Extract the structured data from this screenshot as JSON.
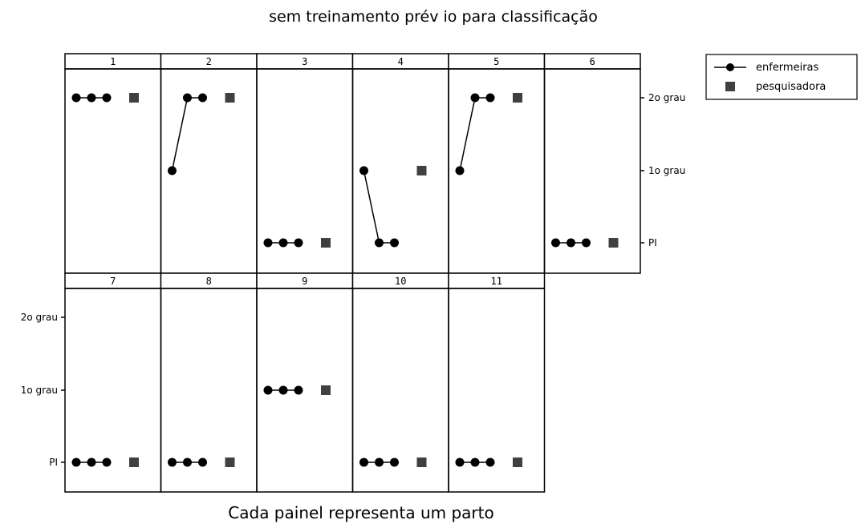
{
  "chart_data": {
    "type": "line",
    "title": "sem treinamento prév io para classificação",
    "xlabel": "Cada painel representa um parto",
    "ylabel": "",
    "y_categories": [
      "PI",
      "1o grau",
      "2o grau"
    ],
    "y_tick_labels": [
      "PI",
      "1o grau",
      "2o grau"
    ],
    "legend": {
      "placement": "top-right",
      "entries": [
        {
          "name": "enfermeiras",
          "marker": "circle",
          "line": true
        },
        {
          "name": "pesquisadora",
          "marker": "square",
          "line": false
        }
      ]
    },
    "colors": {
      "marks": "#000000",
      "square": "#404040",
      "border": "#000000"
    },
    "panels": [
      {
        "label": "1",
        "enfermeiras": [
          2,
          2,
          2
        ],
        "pesquisadora": 2
      },
      {
        "label": "2",
        "enfermeiras": [
          1,
          2,
          2
        ],
        "pesquisadora": 2
      },
      {
        "label": "3",
        "enfermeiras": [
          0,
          0,
          0
        ],
        "pesquisadora": 0
      },
      {
        "label": "4",
        "enfermeiras": [
          1,
          0,
          0
        ],
        "pesquisadora": 1
      },
      {
        "label": "5",
        "enfermeiras": [
          1,
          2,
          2
        ],
        "pesquisadora": 2
      },
      {
        "label": "6",
        "enfermeiras": [
          0,
          0,
          0
        ],
        "pesquisadora": 0
      },
      {
        "label": "7",
        "enfermeiras": [
          0,
          0,
          0
        ],
        "pesquisadora": 0
      },
      {
        "label": "8",
        "enfermeiras": [
          0,
          0,
          0
        ],
        "pesquisadora": 0
      },
      {
        "label": "9",
        "enfermeiras": [
          1,
          1,
          1
        ],
        "pesquisadora": 1
      },
      {
        "label": "10",
        "enfermeiras": [
          0,
          0,
          0
        ],
        "pesquisadora": 0
      },
      {
        "label": "11",
        "enfermeiras": [
          0,
          0,
          0
        ],
        "pesquisadora": 0
      }
    ]
  }
}
